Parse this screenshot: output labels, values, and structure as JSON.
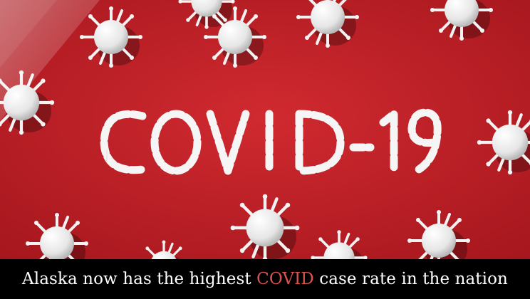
{
  "image": {
    "description_alt": "Red background with white virus models and pills spelling COVID-19",
    "background_color": "#c8232a",
    "pill_text": "COVID-19"
  },
  "caption": {
    "text_before": "Alaska now has the highest ",
    "highlight": "COVID",
    "text_after": " case rate in the nation",
    "highlight_color": "#d9534f",
    "bar_color": "#000000"
  }
}
